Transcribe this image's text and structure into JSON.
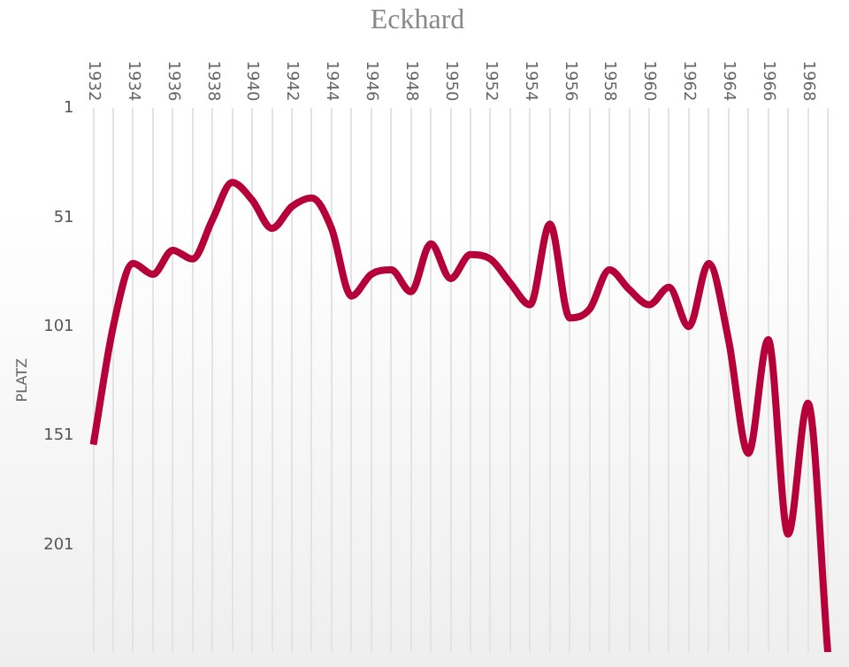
{
  "chart_data": {
    "type": "line",
    "title": "Eckhard",
    "ylabel": "PLATZ",
    "categories": [
      "1932",
      null,
      "1934",
      null,
      "1936",
      null,
      "1938",
      null,
      "1940",
      null,
      "1942",
      null,
      "1944",
      null,
      "1946",
      null,
      "1948",
      null,
      "1950",
      null,
      "1952",
      null,
      "1954",
      null,
      "1956",
      null,
      "1958",
      null,
      "1960",
      null,
      "1962",
      null,
      "1964",
      null,
      "1966",
      null,
      "1968",
      null
    ],
    "series": [
      {
        "color": "#b5003a",
        "values": [
          155,
          101,
          72,
          77,
          66,
          70,
          52,
          35,
          43,
          56,
          46,
          42,
          56,
          87,
          77,
          75,
          85,
          63,
          79,
          68,
          70,
          81,
          91,
          54,
          97,
          93,
          75,
          84,
          91,
          83,
          101,
          72,
          107,
          159,
          107,
          196,
          136,
          250
        ]
      }
    ],
    "ylim": [
      250,
      1
    ],
    "yticks": [
      1,
      51,
      101,
      151,
      201
    ],
    "grid": "x",
    "legend": false,
    "marker": "none",
    "line_style": "solid"
  }
}
